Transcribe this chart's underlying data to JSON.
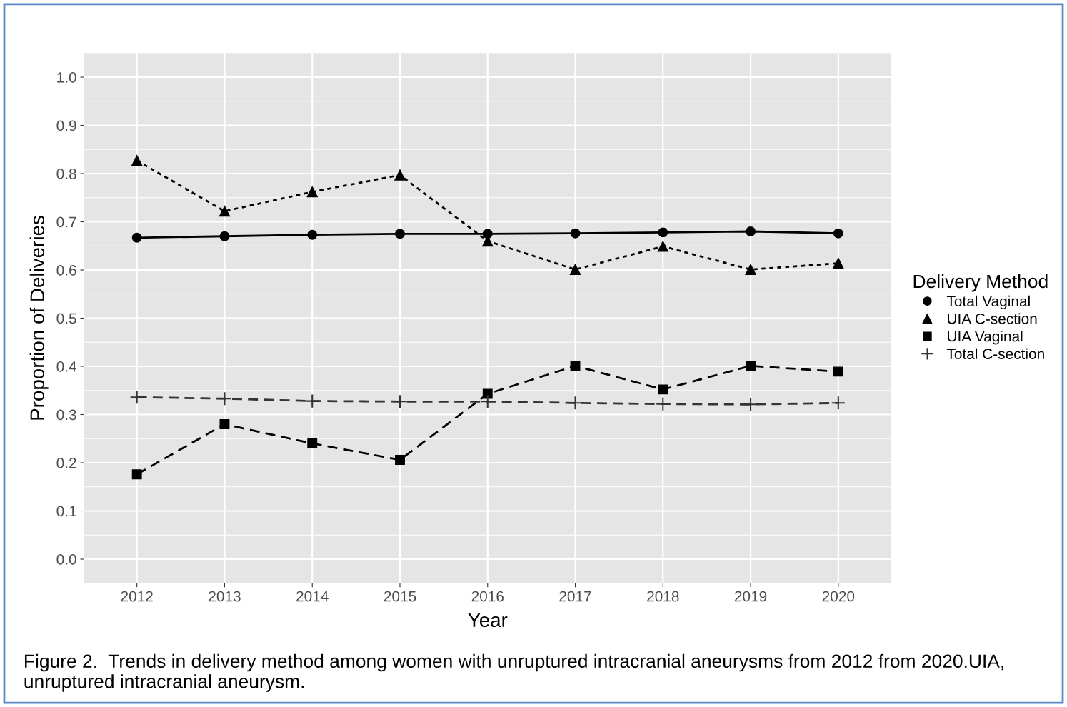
{
  "chart_data": {
    "type": "line",
    "xlabel": "Year",
    "ylabel": "Proportion of Deliveries",
    "legend_title": "Delivery Method",
    "x": [
      2012,
      2013,
      2014,
      2015,
      2016,
      2017,
      2018,
      2019,
      2020
    ],
    "xlim": [
      2011.4,
      2020.6
    ],
    "xticks": [
      2012,
      2013,
      2014,
      2015,
      2016,
      2017,
      2018,
      2019,
      2020
    ],
    "ylim": [
      -0.05,
      1.05
    ],
    "yticks": [
      {
        "value": 0,
        "label": "0.0"
      },
      0.1,
      0.2,
      0.3,
      0.4,
      0.5,
      0.6,
      0.7,
      0.8,
      0.9,
      {
        "value": 1,
        "label": "1.0"
      }
    ],
    "grid": true,
    "legend": "right",
    "series": [
      {
        "name": "Total Vaginal",
        "color": "#000000",
        "marker": "circle",
        "line_style": "solid",
        "values": [
          0.667,
          0.67,
          0.673,
          0.675,
          0.675,
          0.676,
          0.678,
          0.68,
          0.676
        ]
      },
      {
        "name": "UIA C-section",
        "color": "#000000",
        "marker": "triangle",
        "line_style": "dotted",
        "values": [
          0.827,
          0.722,
          0.762,
          0.797,
          0.66,
          0.601,
          0.649,
          0.601,
          0.614
        ]
      },
      {
        "name": "UIA Vaginal",
        "color": "#000000",
        "marker": "square",
        "line_style": "dashed",
        "values": [
          0.176,
          0.28,
          0.24,
          0.206,
          0.343,
          0.401,
          0.352,
          0.401,
          0.389
        ]
      },
      {
        "name": "Total C-section",
        "color": "#333333",
        "marker": "cross",
        "line_style": "dashed",
        "values": [
          0.336,
          0.333,
          0.328,
          0.327,
          0.327,
          0.324,
          0.322,
          0.321,
          0.324
        ]
      }
    ],
    "annotations": [
      "Figure 2.  Trends in delivery method among women with unruptured intracranial aneurysms from 2012 from 2020.UIA, unruptured intracranial aneurysm."
    ]
  }
}
